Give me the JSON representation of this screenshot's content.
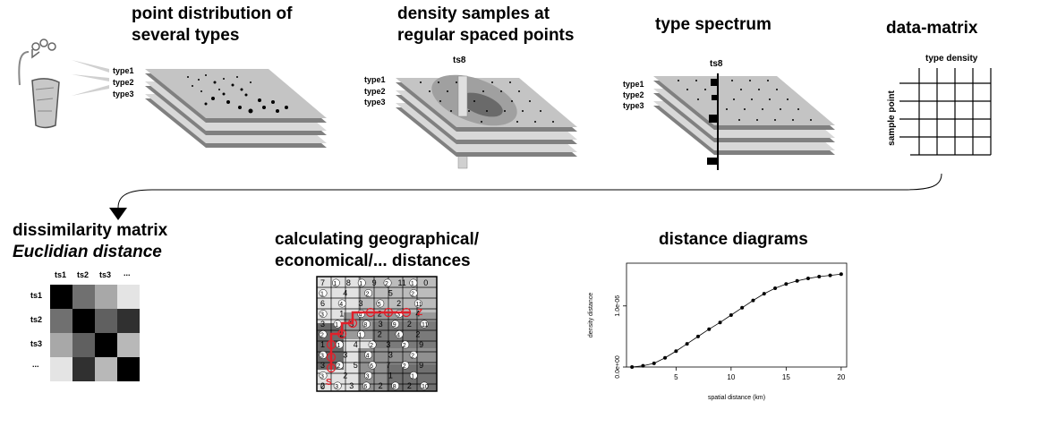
{
  "step1": {
    "title_line1": "point distribution of",
    "title_line2": "several types",
    "layers": [
      "type1",
      "type2",
      "type3"
    ]
  },
  "step2": {
    "title_line1": "density samples at",
    "title_line2": "regular spaced points",
    "marker": "ts8",
    "layers": [
      "type1",
      "type2",
      "type3"
    ]
  },
  "step3": {
    "title": "type spectrum",
    "marker": "ts8",
    "layers": [
      "type1",
      "type2",
      "type3"
    ]
  },
  "step4": {
    "title": "data-matrix",
    "col_header": "type density",
    "row_header": "sample point"
  },
  "step5": {
    "title_line1": "dissimilarity matrix",
    "title_line2": "Euclidian distance",
    "cols": [
      "ts1",
      "ts2",
      "ts3",
      "..."
    ],
    "rows": [
      "ts1",
      "ts2",
      "ts3",
      "..."
    ],
    "grays": [
      [
        "#000000",
        "#707070",
        "#a8a8a8",
        "#e4e4e4"
      ],
      [
        "#707070",
        "#000000",
        "#606060",
        "#303030"
      ],
      [
        "#a8a8a8",
        "#606060",
        "#000000",
        "#b8b8b8"
      ],
      [
        "#e4e4e4",
        "#303030",
        "#b8b8b8",
        "#000000"
      ]
    ]
  },
  "step6": {
    "title_line1": "calculating geographical/",
    "title_line2": "economical/... distances",
    "start_label": "S",
    "end_label": "Z",
    "origin_label": "0",
    "route_color": "#e0202a",
    "grid_numbers": [
      [
        "7",
        "1",
        "8",
        "1",
        "9",
        "2",
        "11",
        "1",
        "0"
      ],
      [
        "1",
        "4",
        "2",
        "5",
        "2"
      ],
      [
        "6",
        "4",
        "3",
        "5",
        "2",
        "11"
      ],
      [
        "3",
        "1",
        "4",
        "2",
        "3",
        "4"
      ],
      [
        "3",
        "1",
        "3",
        "8",
        "3",
        "9",
        "2",
        "11"
      ],
      [
        "2",
        "2",
        "1",
        "2",
        "4",
        "2"
      ],
      [
        "1",
        "1",
        "4",
        "2",
        "3",
        "2",
        "9"
      ],
      [
        "3",
        "3",
        "4",
        "3",
        "2"
      ],
      [
        "3",
        "2",
        "5",
        "6",
        "7",
        "2",
        "9"
      ],
      [
        "3",
        "2",
        "3",
        "1",
        "1"
      ],
      [
        "2",
        "3",
        "3",
        "6",
        "2",
        "8",
        "2",
        "10"
      ]
    ]
  },
  "step7": {
    "title": "distance diagrams",
    "chart_data": {
      "type": "line",
      "title": "",
      "xlabel": "spatial distance (km)",
      "ylabel": "density distance",
      "xlim": [
        0.5,
        20.5
      ],
      "ylim": [
        0,
        1.7e-06
      ],
      "x_ticks": [
        5,
        10,
        15,
        20
      ],
      "x_tick_labels": [
        "5",
        "10",
        "15",
        "20"
      ],
      "y_ticks": [
        0,
        1e-06
      ],
      "y_tick_labels": [
        "0.0e+00",
        "1.0e-06"
      ],
      "series": [
        {
          "x": [
            1,
            2,
            3,
            4,
            5,
            6,
            7,
            8,
            9,
            10,
            11,
            12,
            13,
            14,
            15,
            16,
            17,
            18,
            19,
            20
          ],
          "y": [
            0.0,
            2e-08,
            6e-08,
            1.5e-07,
            2.6e-07,
            3.8e-07,
            5e-07,
            6.2e-07,
            7.3e-07,
            8.5e-07,
            9.7e-07,
            1.09e-06,
            1.2e-06,
            1.29e-06,
            1.36e-06,
            1.41e-06,
            1.45e-06,
            1.48e-06,
            1.5e-06,
            1.52e-06
          ]
        }
      ]
    }
  }
}
